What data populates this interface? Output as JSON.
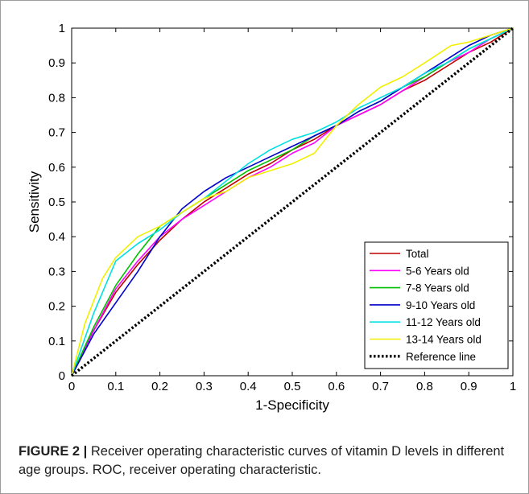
{
  "chart_data": {
    "type": "line",
    "xlabel": "1-Specificity",
    "ylabel": "Sensitivity",
    "xlim": [
      0,
      1
    ],
    "ylim": [
      0,
      1
    ],
    "xticks": [
      "0",
      "0.1",
      "0.2",
      "0.3",
      "0.4",
      "0.5",
      "0.6",
      "0.7",
      "0.8",
      "0.9",
      "1"
    ],
    "yticks": [
      "0",
      "0.1",
      "0.2",
      "0.3",
      "0.4",
      "0.5",
      "0.6",
      "0.7",
      "0.8",
      "0.9",
      "1"
    ],
    "grid": false,
    "legend_position": "bottom-right",
    "series": [
      {
        "name": "Total",
        "color": "#c00000",
        "dash": "solid",
        "x": [
          0,
          0.05,
          0.1,
          0.15,
          0.2,
          0.25,
          0.3,
          0.35,
          0.4,
          0.45,
          0.5,
          0.55,
          0.6,
          0.65,
          0.7,
          0.75,
          0.8,
          0.85,
          0.9,
          0.95,
          1
        ],
        "y": [
          0,
          0.13,
          0.24,
          0.32,
          0.39,
          0.45,
          0.5,
          0.54,
          0.58,
          0.61,
          0.65,
          0.68,
          0.72,
          0.75,
          0.78,
          0.82,
          0.85,
          0.89,
          0.93,
          0.96,
          1
        ]
      },
      {
        "name": "5-6 Years old",
        "color": "#ff00ff",
        "dash": "solid",
        "x": [
          0,
          0.05,
          0.1,
          0.15,
          0.2,
          0.25,
          0.3,
          0.35,
          0.4,
          0.45,
          0.5,
          0.55,
          0.6,
          0.65,
          0.7,
          0.75,
          0.8,
          0.85,
          0.9,
          0.95,
          1
        ],
        "y": [
          0,
          0.13,
          0.25,
          0.33,
          0.4,
          0.45,
          0.49,
          0.53,
          0.57,
          0.6,
          0.64,
          0.67,
          0.72,
          0.75,
          0.78,
          0.82,
          0.86,
          0.9,
          0.93,
          0.97,
          1
        ]
      },
      {
        "name": "7-8 Years old",
        "color": "#00c000",
        "dash": "solid",
        "x": [
          0,
          0.05,
          0.1,
          0.15,
          0.2,
          0.25,
          0.3,
          0.35,
          0.4,
          0.45,
          0.5,
          0.55,
          0.6,
          0.65,
          0.7,
          0.75,
          0.8,
          0.85,
          0.9,
          0.95,
          1
        ],
        "y": [
          0,
          0.14,
          0.26,
          0.35,
          0.43,
          0.47,
          0.51,
          0.55,
          0.59,
          0.62,
          0.65,
          0.69,
          0.72,
          0.76,
          0.79,
          0.83,
          0.86,
          0.9,
          0.94,
          0.97,
          1
        ]
      },
      {
        "name": "9-10 Years old",
        "color": "#0000cc",
        "dash": "solid",
        "x": [
          0,
          0.05,
          0.1,
          0.15,
          0.2,
          0.25,
          0.3,
          0.35,
          0.4,
          0.45,
          0.5,
          0.55,
          0.6,
          0.65,
          0.7,
          0.75,
          0.8,
          0.85,
          0.9,
          0.95,
          1
        ],
        "y": [
          0,
          0.12,
          0.21,
          0.3,
          0.4,
          0.48,
          0.53,
          0.57,
          0.6,
          0.63,
          0.66,
          0.69,
          0.72,
          0.76,
          0.79,
          0.83,
          0.87,
          0.91,
          0.95,
          0.98,
          1
        ]
      },
      {
        "name": "11-12 Years old",
        "color": "#00e0e0",
        "dash": "solid",
        "x": [
          0,
          0.05,
          0.1,
          0.15,
          0.2,
          0.25,
          0.3,
          0.35,
          0.4,
          0.45,
          0.5,
          0.55,
          0.6,
          0.65,
          0.7,
          0.75,
          0.8,
          0.85,
          0.9,
          0.95,
          1
        ],
        "y": [
          0,
          0.18,
          0.33,
          0.38,
          0.42,
          0.47,
          0.51,
          0.56,
          0.61,
          0.65,
          0.68,
          0.7,
          0.73,
          0.77,
          0.8,
          0.83,
          0.87,
          0.9,
          0.94,
          0.97,
          1
        ]
      },
      {
        "name": "13-14 Years old",
        "color": "#f0f000",
        "dash": "solid",
        "x": [
          0,
          0.03,
          0.07,
          0.1,
          0.15,
          0.2,
          0.25,
          0.3,
          0.35,
          0.4,
          0.45,
          0.5,
          0.55,
          0.6,
          0.65,
          0.7,
          0.75,
          0.8,
          0.86,
          0.9,
          0.95,
          1
        ],
        "y": [
          0,
          0.15,
          0.28,
          0.34,
          0.4,
          0.43,
          0.47,
          0.51,
          0.53,
          0.57,
          0.59,
          0.61,
          0.64,
          0.72,
          0.78,
          0.83,
          0.86,
          0.9,
          0.95,
          0.96,
          0.98,
          1
        ]
      },
      {
        "name": "Reference line",
        "color": "#000000",
        "dash": "dotted",
        "x": [
          0,
          1
        ],
        "y": [
          0,
          1
        ]
      }
    ]
  },
  "caption": {
    "label": "FIGURE 2 |",
    "text": " Receiver operating characteristic curves of vitamin D levels in different age groups. ROC, receiver operating characteristic."
  }
}
